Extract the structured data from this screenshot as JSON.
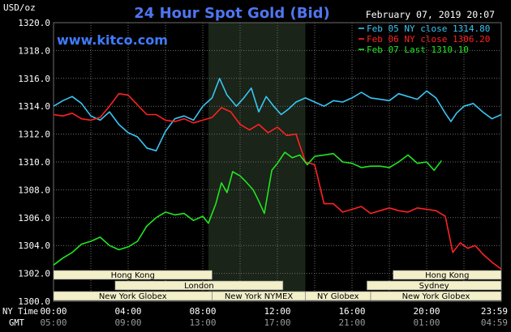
{
  "title": "24 Hour Spot Gold (Bid)",
  "timestamp": "February 07, 2019 20:07",
  "watermark": "www.kitco.com",
  "units_label": "USD/oz",
  "colors": {
    "background": "#000000",
    "plot_bg": "#000000",
    "shaded": "#1a2418",
    "grid": "#6e6e6e",
    "axis_text": "#ffffff",
    "title": "#4f76f0",
    "watermark": "#3f7bff",
    "session_bar": "#f2efc9",
    "session_text": "#000000",
    "feb05": "#39c6f4",
    "feb06": "#ff2222",
    "feb07": "#22e622"
  },
  "sessions": [
    {
      "name": "Hong Kong",
      "row": 0,
      "start": 0,
      "end": 8.5
    },
    {
      "name": "Hong Kong",
      "row": 0,
      "start": 18.2,
      "end": 24
    },
    {
      "name": "London",
      "row": 1,
      "start": 3.3,
      "end": 12.3
    },
    {
      "name": "Sydney",
      "row": 1,
      "start": 16.8,
      "end": 24
    },
    {
      "name": "New York Globex",
      "row": 2,
      "start": 0,
      "end": 8.5
    },
    {
      "name": "New York NYMEX",
      "row": 2,
      "start": 8.5,
      "end": 13.5
    },
    {
      "name": "NY Globex",
      "row": 2,
      "start": 13.5,
      "end": 17
    },
    {
      "name": "New York Globex",
      "row": 2,
      "start": 17,
      "end": 24
    }
  ],
  "time_axis": {
    "ny_label": "NY Time",
    "gmt_label": "GMT",
    "ny_ticks": [
      "00:00",
      "04:00",
      "08:00",
      "12:00",
      "16:00",
      "20:00",
      "23:59"
    ],
    "gmt_ticks": [
      "05:00",
      "09:00",
      "13:00",
      "17:00",
      "21:00",
      "01:00",
      "04:59"
    ]
  },
  "chart_data": {
    "type": "line",
    "title": "24 Hour Spot Gold (Bid)",
    "ylabel": "USD/oz",
    "ylim": [
      1300.0,
      1320.0
    ],
    "yticks": [
      "1300.0",
      "1302.0",
      "1304.0",
      "1306.0",
      "1308.0",
      "1310.0",
      "1312.0",
      "1314.0",
      "1316.0",
      "1318.0",
      "1320.0"
    ],
    "xlim": [
      0,
      24
    ],
    "shaded_region_hours": [
      8.3,
      13.5
    ],
    "grid": true,
    "legend_placement": "top-right",
    "series": [
      {
        "name": "Feb 05 NY close 1314.80",
        "color": "#39c6f4",
        "points": [
          [
            0,
            1314.0
          ],
          [
            0.5,
            1314.4
          ],
          [
            1,
            1314.7
          ],
          [
            1.5,
            1314.2
          ],
          [
            2,
            1313.3
          ],
          [
            2.5,
            1313.0
          ],
          [
            3,
            1313.6
          ],
          [
            3.5,
            1312.7
          ],
          [
            4,
            1312.1
          ],
          [
            4.5,
            1311.8
          ],
          [
            5,
            1311.0
          ],
          [
            5.5,
            1310.8
          ],
          [
            6,
            1312.2
          ],
          [
            6.5,
            1313.1
          ],
          [
            7,
            1313.3
          ],
          [
            7.5,
            1313.0
          ],
          [
            8,
            1314.0
          ],
          [
            8.5,
            1314.6
          ],
          [
            8.9,
            1316.0
          ],
          [
            9.3,
            1314.8
          ],
          [
            9.8,
            1314.0
          ],
          [
            10.2,
            1314.6
          ],
          [
            10.6,
            1315.3
          ],
          [
            11,
            1313.6
          ],
          [
            11.4,
            1314.7
          ],
          [
            11.8,
            1314.0
          ],
          [
            12.2,
            1313.4
          ],
          [
            12.6,
            1313.8
          ],
          [
            13,
            1314.3
          ],
          [
            13.5,
            1314.6
          ],
          [
            14,
            1314.3
          ],
          [
            14.5,
            1314.0
          ],
          [
            15,
            1314.4
          ],
          [
            15.5,
            1314.3
          ],
          [
            16,
            1314.6
          ],
          [
            16.5,
            1315.0
          ],
          [
            17,
            1314.6
          ],
          [
            17.5,
            1314.5
          ],
          [
            18,
            1314.4
          ],
          [
            18.5,
            1314.9
          ],
          [
            19,
            1314.7
          ],
          [
            19.5,
            1314.5
          ],
          [
            20,
            1315.1
          ],
          [
            20.5,
            1314.6
          ],
          [
            21,
            1313.5
          ],
          [
            21.3,
            1312.9
          ],
          [
            21.6,
            1313.5
          ],
          [
            22,
            1314.0
          ],
          [
            22.5,
            1314.2
          ],
          [
            23,
            1313.6
          ],
          [
            23.5,
            1313.1
          ],
          [
            24,
            1313.4
          ]
        ]
      },
      {
        "name": "Feb 06 NY close 1306.20",
        "color": "#ff2222",
        "points": [
          [
            0,
            1313.4
          ],
          [
            0.5,
            1313.3
          ],
          [
            1,
            1313.5
          ],
          [
            1.5,
            1313.1
          ],
          [
            2,
            1313.0
          ],
          [
            2.5,
            1313.2
          ],
          [
            3,
            1314.0
          ],
          [
            3.5,
            1314.9
          ],
          [
            4,
            1314.8
          ],
          [
            4.5,
            1314.1
          ],
          [
            5,
            1313.4
          ],
          [
            5.5,
            1313.4
          ],
          [
            6,
            1313.0
          ],
          [
            6.5,
            1312.9
          ],
          [
            7,
            1313.1
          ],
          [
            7.5,
            1312.8
          ],
          [
            8,
            1313.0
          ],
          [
            8.5,
            1313.2
          ],
          [
            9,
            1313.9
          ],
          [
            9.5,
            1313.6
          ],
          [
            10,
            1312.7
          ],
          [
            10.5,
            1312.3
          ],
          [
            11,
            1312.7
          ],
          [
            11.5,
            1312.1
          ],
          [
            12,
            1312.5
          ],
          [
            12.5,
            1311.9
          ],
          [
            13,
            1312.0
          ],
          [
            13.5,
            1310.0
          ],
          [
            14,
            1309.8
          ],
          [
            14.5,
            1307.0
          ],
          [
            15,
            1307.0
          ],
          [
            15.5,
            1306.4
          ],
          [
            16,
            1306.6
          ],
          [
            16.5,
            1306.8
          ],
          [
            17,
            1306.3
          ],
          [
            17.5,
            1306.5
          ],
          [
            18,
            1306.7
          ],
          [
            18.5,
            1306.5
          ],
          [
            19,
            1306.4
          ],
          [
            19.5,
            1306.7
          ],
          [
            20,
            1306.6
          ],
          [
            20.5,
            1306.5
          ],
          [
            21,
            1306.1
          ],
          [
            21.4,
            1303.5
          ],
          [
            21.8,
            1304.2
          ],
          [
            22.2,
            1303.8
          ],
          [
            22.6,
            1304.0
          ],
          [
            23,
            1303.4
          ],
          [
            23.5,
            1302.8
          ],
          [
            24,
            1302.3
          ]
        ]
      },
      {
        "name": "Feb 07 Last 1310.10",
        "color": "#22e622",
        "points": [
          [
            0,
            1302.6
          ],
          [
            0.5,
            1303.1
          ],
          [
            1,
            1303.5
          ],
          [
            1.5,
            1304.1
          ],
          [
            2,
            1304.3
          ],
          [
            2.5,
            1304.6
          ],
          [
            3,
            1304.0
          ],
          [
            3.5,
            1303.7
          ],
          [
            4,
            1303.9
          ],
          [
            4.5,
            1304.3
          ],
          [
            5,
            1305.4
          ],
          [
            5.5,
            1306.0
          ],
          [
            6,
            1306.4
          ],
          [
            6.5,
            1306.2
          ],
          [
            7,
            1306.3
          ],
          [
            7.5,
            1305.8
          ],
          [
            8,
            1306.1
          ],
          [
            8.3,
            1305.6
          ],
          [
            8.7,
            1307.0
          ],
          [
            9,
            1308.5
          ],
          [
            9.3,
            1307.8
          ],
          [
            9.6,
            1309.3
          ],
          [
            10,
            1309.0
          ],
          [
            10.3,
            1308.6
          ],
          [
            10.7,
            1308.0
          ],
          [
            11,
            1307.2
          ],
          [
            11.3,
            1306.3
          ],
          [
            11.7,
            1309.4
          ],
          [
            12,
            1309.9
          ],
          [
            12.4,
            1310.7
          ],
          [
            12.8,
            1310.3
          ],
          [
            13.2,
            1310.5
          ],
          [
            13.6,
            1309.8
          ],
          [
            14,
            1310.4
          ],
          [
            14.5,
            1310.5
          ],
          [
            15,
            1310.6
          ],
          [
            15.5,
            1310.0
          ],
          [
            16,
            1309.9
          ],
          [
            16.5,
            1309.6
          ],
          [
            17,
            1309.7
          ],
          [
            17.5,
            1309.7
          ],
          [
            18,
            1309.6
          ],
          [
            18.5,
            1310.0
          ],
          [
            19,
            1310.5
          ],
          [
            19.5,
            1309.9
          ],
          [
            20,
            1310.0
          ],
          [
            20.4,
            1309.4
          ],
          [
            20.8,
            1310.1
          ]
        ]
      }
    ]
  }
}
